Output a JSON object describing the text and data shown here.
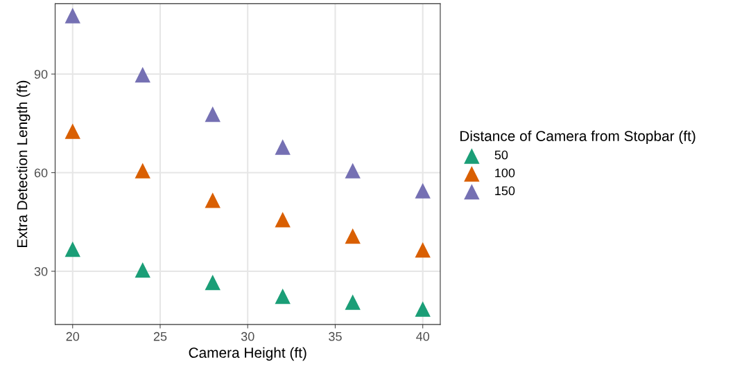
{
  "chart_data": {
    "type": "scatter",
    "xlabel": "Camera Height (ft)",
    "ylabel": "Extra Detection Length (ft)",
    "legend_title": "Distance of Camera from Stopbar (ft)",
    "x": [
      20,
      24,
      28,
      32,
      36,
      40
    ],
    "series": [
      {
        "name": "50",
        "color": "#1b9e77",
        "values": [
          36.7,
          30.4,
          26.6,
          22.4,
          20.6,
          18.5
        ]
      },
      {
        "name": "100",
        "color": "#d95f02",
        "values": [
          72.6,
          60.6,
          51.6,
          45.7,
          40.7,
          36.5
        ]
      },
      {
        "name": "150",
        "color": "#7570b3",
        "values": [
          107.8,
          89.8,
          77.8,
          67.8,
          60.6,
          54.5
        ]
      }
    ],
    "xlim": [
      19,
      41
    ],
    "ylim": [
      13.8,
      111.4
    ],
    "xticks": [
      20,
      25,
      30,
      35,
      40
    ],
    "yticks": [
      30,
      60,
      90
    ],
    "grid": true,
    "legend": "right",
    "marker": "triangle"
  }
}
